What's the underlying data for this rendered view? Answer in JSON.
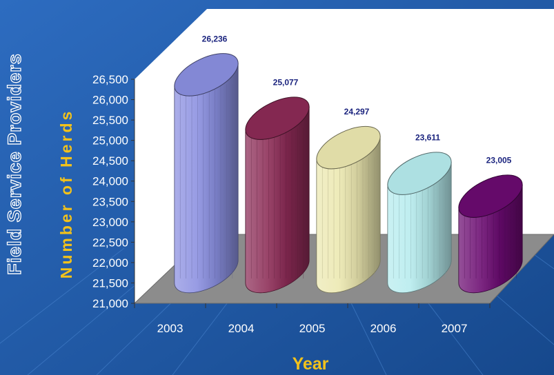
{
  "side_title": "Field Service Providers",
  "colors": {
    "background": "#1f5aa8",
    "back_wall": "#ffffff",
    "floor": "#8c8c8c",
    "axis_title": "#f2c21b",
    "data_label": "#1a237e"
  },
  "chart_data": {
    "type": "bar",
    "style": "3d-cylinder",
    "categories": [
      "2003",
      "2004",
      "2005",
      "2006",
      "2007"
    ],
    "values": [
      26236,
      25077,
      24297,
      23611,
      23005
    ],
    "value_labels": [
      "26,236",
      "25,077",
      "24,297",
      "23,611",
      "23,005"
    ],
    "bar_colors": [
      "#8a8fe0",
      "#8b2a55",
      "#ece8b0",
      "#b6ecee",
      "#6a0a70"
    ],
    "xlabel": "Year",
    "ylabel": "Number of Herds",
    "ylim": [
      21000,
      26500
    ],
    "yticks": [
      21000,
      21500,
      22000,
      22500,
      23000,
      23500,
      24000,
      24500,
      25000,
      25500,
      26000,
      26500
    ],
    "ytick_labels": [
      "21,000",
      "21,500",
      "22,000",
      "22,500",
      "23,000",
      "23,500",
      "24,000",
      "24,500",
      "25,000",
      "25,500",
      "26,000",
      "26,500"
    ],
    "legend": "none",
    "grid": false
  }
}
